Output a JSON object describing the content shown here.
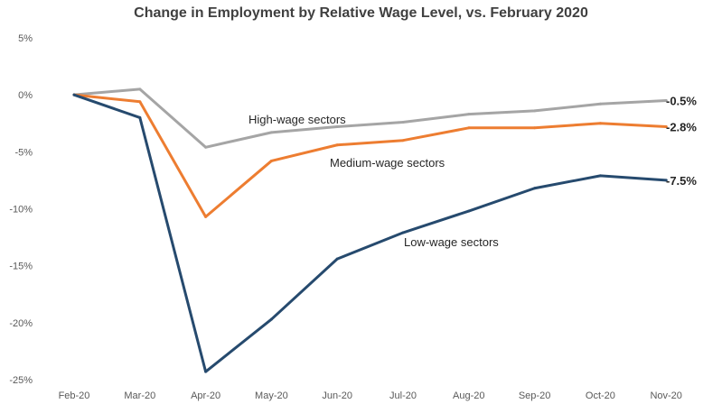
{
  "chart_data": {
    "type": "line",
    "title": "Change in Employment by Relative Wage Level, vs. February 2020",
    "xlabel": "",
    "ylabel": "",
    "categories": [
      "Feb-20",
      "Mar-20",
      "Apr-20",
      "May-20",
      "Jun-20",
      "Jul-20",
      "Aug-20",
      "Sep-20",
      "Oct-20",
      "Nov-20"
    ],
    "y_ticks": [
      5,
      0,
      -5,
      -10,
      -15,
      -20,
      -25
    ],
    "y_tick_labels": [
      "5%",
      "0%",
      "-5%",
      "-10%",
      "-15%",
      "-20%",
      "-25%"
    ],
    "ylim": [
      -25,
      5
    ],
    "grid": false,
    "legend": "none",
    "series": [
      {
        "name": "High-wage sectors",
        "color": "#a5a5a5",
        "values": [
          0,
          0.5,
          -4.6,
          -3.3,
          -2.8,
          -2.4,
          -1.7,
          -1.4,
          -0.8,
          -0.5
        ],
        "end_label": "-0.5%"
      },
      {
        "name": "Medium-wage sectors",
        "color": "#ed7d31",
        "values": [
          0,
          -0.6,
          -10.7,
          -5.8,
          -4.4,
          -4.0,
          -2.9,
          -2.9,
          -2.5,
          -2.8
        ],
        "end_label": "-2.8%"
      },
      {
        "name": "Low-wage sectors",
        "color": "#264a6e",
        "values": [
          0,
          -2.0,
          -24.3,
          -19.7,
          -14.4,
          -12.1,
          -10.2,
          -8.2,
          -7.1,
          -7.5
        ],
        "end_label": "-7.5%"
      }
    ]
  }
}
